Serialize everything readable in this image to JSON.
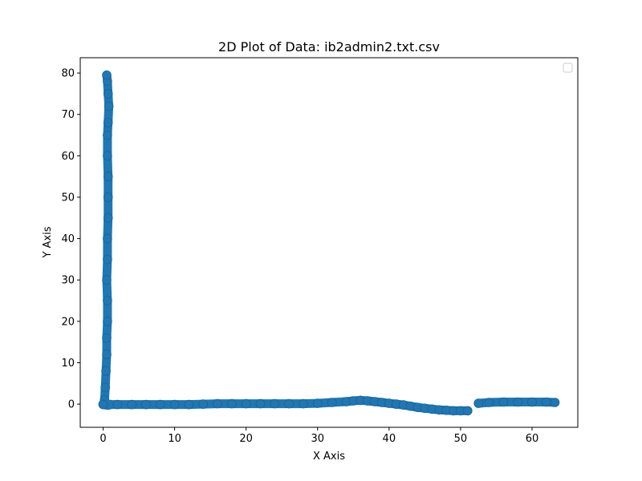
{
  "chart_data": {
    "type": "scatter",
    "title": "2D Plot of Data: ib2admin2.txt.csv",
    "xlabel": "X Axis",
    "ylabel": "Y Axis",
    "xlim": [
      -3.2,
      66.4
    ],
    "ylim": [
      -5.6,
      83.7
    ],
    "xticks": [
      0,
      10,
      20,
      30,
      40,
      50,
      60
    ],
    "yticks": [
      0,
      10,
      20,
      30,
      40,
      50,
      60,
      70,
      80
    ],
    "grid": false,
    "legend": {
      "placement": "top-right",
      "entries": []
    },
    "marker_color": "#1f77b4",
    "series": [
      {
        "segments": [
          {
            "x": [
              0,
              0.2,
              0.5,
              0.8,
              1.0
            ],
            "y": [
              0,
              -0.1,
              -0.2,
              -0.2,
              -0.1
            ]
          },
          {
            "x": [
              0.2,
              0.3,
              0.4,
              0.5,
              0.5,
              0.6,
              0.6,
              0.5,
              0.6,
              0.6,
              0.7,
              0.7,
              0.7,
              0.6,
              0.6,
              0.7,
              0.8,
              0.7,
              0.6,
              0.5
            ],
            "y": [
              1,
              4,
              8,
              12,
              16,
              20,
              25,
              30,
              35,
              40,
              45,
              50,
              55,
              60,
              65,
              68,
              72,
              75,
              78,
              79.5
            ]
          },
          {
            "x": [
              0,
              2,
              4,
              6,
              8,
              10,
              12,
              14,
              16,
              18,
              20,
              22,
              24,
              26,
              28,
              30,
              32,
              34,
              35,
              36,
              37,
              38,
              39,
              40,
              41,
              42,
              43,
              44,
              45,
              46,
              47,
              48,
              49,
              50,
              51
            ],
            "y": [
              -0.1,
              -0.1,
              -0.1,
              -0.1,
              -0.1,
              -0.1,
              -0.1,
              0,
              0.1,
              0.1,
              0.1,
              0.1,
              0.1,
              0.1,
              0.1,
              0.2,
              0.4,
              0.6,
              0.8,
              0.9,
              0.8,
              0.6,
              0.4,
              0.2,
              0,
              -0.2,
              -0.5,
              -0.8,
              -1.0,
              -1.2,
              -1.4,
              -1.5,
              -1.6,
              -1.6,
              -1.6
            ]
          },
          {
            "x": [
              52.5,
              54,
              56,
              58,
              60,
              62,
              63.2
            ],
            "y": [
              0.2,
              0.4,
              0.5,
              0.5,
              0.5,
              0.5,
              0.4
            ]
          }
        ]
      }
    ]
  }
}
